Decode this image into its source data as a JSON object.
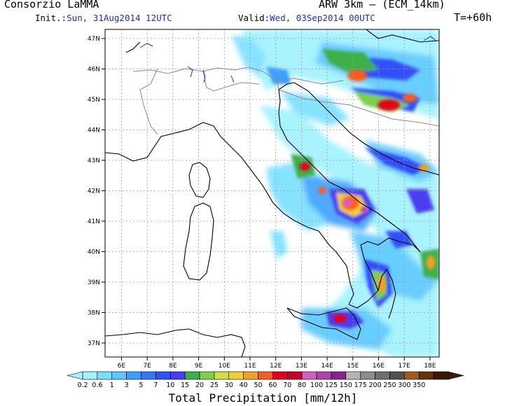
{
  "header": {
    "org": "Consorzio LaMMA",
    "model": "ARW 3km – (ECM_14km)",
    "init_label": "Init.:",
    "init_value": "Sun, 31Aug2014 12UTC",
    "valid_label": "Valid:",
    "valid_value": "Wed, 03Sep2014 00UTC",
    "lead": "T=+60h"
  },
  "axes": {
    "lat_labels": [
      "47N",
      "46N",
      "45N",
      "44N",
      "43N",
      "42N",
      "41N",
      "40N",
      "39N",
      "38N",
      "37N"
    ],
    "lon_labels": [
      "6E",
      "7E",
      "8E",
      "9E",
      "10E",
      "11E",
      "12E",
      "13E",
      "14E",
      "15E",
      "16E",
      "17E",
      "18E"
    ]
  },
  "colorbar": {
    "title": "Total Precipitation [mm/12h]",
    "labels": [
      "0.2",
      "0.6",
      "1",
      "3",
      "5",
      "7",
      "10",
      "15",
      "20",
      "25",
      "30",
      "40",
      "50",
      "60",
      "70",
      "80",
      "100",
      "125",
      "150",
      "175",
      "200",
      "250",
      "300",
      "350"
    ],
    "colors": [
      "#9ff2ff",
      "#7ae0ff",
      "#58c8ff",
      "#3aa0ff",
      "#2f78ff",
      "#3050ff",
      "#4c3cf0",
      "#3cb04a",
      "#7ed04a",
      "#c8e040",
      "#f0d030",
      "#f5a020",
      "#ff5a1e",
      "#e6001e",
      "#c8002a",
      "#d060c0",
      "#b040b0",
      "#8a2090",
      "#b4b4b4",
      "#8c8c8c",
      "#6e6e6e",
      "#505050",
      "#a05a20",
      "#6a3008",
      "#3a1a04"
    ]
  },
  "colors": {
    "accent_text": "#1a2fd0",
    "coast": "#000000",
    "border": "#8a8a8a",
    "lakes": "#1a2fd0"
  }
}
